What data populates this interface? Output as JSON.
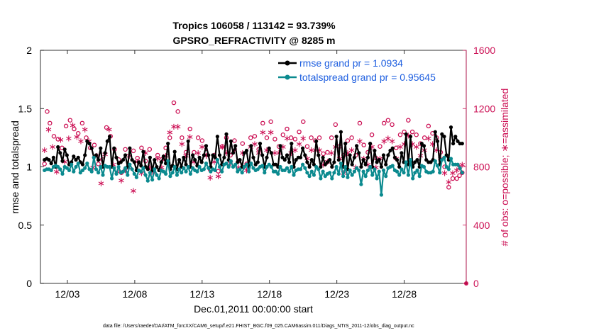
{
  "chart_data": {
    "type": "line",
    "title_line1": "Tropics 106058 / 113142 = 93.739%",
    "title_line2": "GPSRO_REFRACTIVITY @ 8285 m",
    "xlabel": "Dec.01,2011 00:00:00 start",
    "ylabel": "rmse and totalspread",
    "ylabel_right": "# of obs: o=possible; ∗=assimilated",
    "xlim": [
      1,
      32.6
    ],
    "ylim": [
      0,
      2
    ],
    "ylim_right": [
      0,
      1600
    ],
    "x_tick_values": [
      3,
      8,
      13,
      18,
      23,
      28
    ],
    "x_tick_labels": [
      "12/03",
      "12/08",
      "12/13",
      "12/18",
      "12/23",
      "12/28"
    ],
    "y_tick_labels": [
      "0",
      "0.5",
      "1",
      "1.5",
      "2"
    ],
    "y_tick_values": [
      0,
      0.5,
      1,
      1.5,
      2
    ],
    "y2_tick_labels": [
      "0",
      "400",
      "800",
      "1200",
      "1600"
    ],
    "y2_tick_values": [
      0,
      400,
      800,
      1200,
      1600
    ],
    "legend_position": "top-right",
    "series": [
      {
        "name": "rmse grand pr = 1.0934",
        "color": "#000000",
        "values": [
          1.06,
          1.07,
          1.06,
          1.03,
          1.08,
          1.0,
          1.17,
          1.12,
          1.05,
          1.15,
          1.1,
          1.02,
          1.04,
          1.09,
          1.06,
          1.08,
          1.04,
          1.02,
          1.1,
          1.22,
          1.2,
          1.16,
          1.08,
          1.1,
          1.06,
          1.16,
          1.0,
          1.12,
          1.22,
          1.26,
          1.0,
          1.16,
          1.08,
          1.03,
          1.04,
          1.06,
          1.1,
          1.0,
          1.16,
          1.06,
          1.04,
          0.97,
          1.04,
          1.01,
          1.13,
          1.0,
          0.98,
          1.08,
          0.97,
          1.06,
          1.0,
          0.97,
          1.04,
          1.09,
          1.03,
          1.2,
          0.98,
          1.01,
          1.13,
          0.98,
          1.06,
          1.0,
          1.08,
          1.02,
          1.22,
          1.0,
          1.1,
          1.06,
          1.01,
          1.08,
          1.04,
          1.1,
          1.18,
          1.1,
          1.0,
          1.1,
          1.08,
          1.26,
          1.1,
          1.02,
          1.08,
          1.28,
          1.06,
          1.22,
          1.12,
          1.18,
          1.04,
          1.06,
          1.0,
          1.12,
          1.14,
          1.0,
          1.18,
          1.08,
          1.02,
          1.04,
          1.2,
          1.1,
          1.0,
          1.08,
          1.16,
          1.12,
          1.02,
          1.02,
          1.0,
          1.18,
          1.08,
          1.06,
          1.1,
          1.04,
          1.2,
          1.0,
          1.06,
          1.08,
          1.08,
          1.16,
          1.1,
          1.04,
          1.0,
          1.06,
          1.02,
          1.22,
          1.1,
          1.0,
          1.08,
          1.02,
          1.04,
          1.06,
          1.0,
          1.04,
          1.26,
          1.06,
          1.3,
          1.0,
          1.2,
          0.98,
          1.1,
          1.02,
          1.08,
          1.18,
          1.12,
          1.0,
          1.06,
          1.02,
          1.08,
          1.2,
          1.0,
          1.14,
          1.04,
          1.06,
          1.0,
          1.1,
          1.02,
          1.1,
          1.14,
          1.16,
          1.08,
          1.06,
          1.0,
          1.12,
          1.04,
          1.28,
          1.02,
          1.26,
          1.0,
          1.04,
          1.06,
          1.0,
          1.2,
          1.18,
          1.06,
          1.04,
          1.04,
          1.06,
          1.3,
          1.22,
          1.02,
          1.28,
          1.26,
          1.1,
          1.06,
          1.34,
          1.2,
          1.26,
          1.22,
          1.2,
          1.2
        ]
      },
      {
        "name": "totalspread grand pr = 0.95645",
        "color": "#0b8a8f",
        "values": [
          0.97,
          0.98,
          0.98,
          0.97,
          1.0,
          1.01,
          1.0,
          0.98,
          0.94,
          1.0,
          0.99,
          0.97,
          1.02,
          0.96,
          1.0,
          1.03,
          0.95,
          0.97,
          0.99,
          1.03,
          0.98,
          0.96,
          1.08,
          0.98,
          0.95,
          1.0,
          0.93,
          1.01,
          1.0,
          1.0,
          0.9,
          0.99,
          0.94,
          1.0,
          0.95,
          0.96,
          0.99,
          0.93,
          1.02,
          0.98,
          0.94,
          0.91,
          0.97,
          0.96,
          0.99,
          0.93,
          0.88,
          0.95,
          0.89,
          0.98,
          0.93,
          0.9,
          0.97,
          0.96,
          0.94,
          1.05,
          0.92,
          0.95,
          1.0,
          0.93,
          0.98,
          0.95,
          0.99,
          0.96,
          1.0,
          0.94,
          0.99,
          0.97,
          0.96,
          1.0,
          0.97,
          0.98,
          1.03,
          0.99,
          0.96,
          0.98,
          0.97,
          1.06,
          1.0,
          0.96,
          1.02,
          1.03,
          1.0,
          1.05,
          1.0,
          1.02,
          0.96,
          0.98,
          0.95,
          1.0,
          1.02,
          0.96,
          1.03,
          0.99,
          0.97,
          0.98,
          1.0,
          1.01,
          0.95,
          1.0,
          1.02,
          1.0,
          0.96,
          0.96,
          0.94,
          1.0,
          0.97,
          0.97,
          0.99,
          0.96,
          1.0,
          0.93,
          0.97,
          0.98,
          0.98,
          1.02,
          0.99,
          0.95,
          0.92,
          0.96,
          0.93,
          1.0,
          0.98,
          0.9,
          0.96,
          0.92,
          0.94,
          0.95,
          0.9,
          0.95,
          1.0,
          0.94,
          1.03,
          0.92,
          1.0,
          0.91,
          0.97,
          0.93,
          0.96,
          0.99,
          0.97,
          0.85,
          0.96,
          0.92,
          0.97,
          1.0,
          0.93,
          0.98,
          0.9,
          0.96,
          0.76,
          0.97,
          0.92,
          0.99,
          1.0,
          1.01,
          0.97,
          0.96,
          0.93,
          0.98,
          0.95,
          1.04,
          0.93,
          1.06,
          0.9,
          0.95,
          0.97,
          0.92,
          1.01,
          1.0,
          0.96,
          0.95,
          0.95,
          0.96,
          1.05,
          1.01,
          0.95,
          1.06,
          1.08,
          1.0,
          0.98,
          1.07,
          1.02,
          1.02,
          1.02,
          0.99,
          0.95
        ]
      }
    ],
    "obs_possible": [
      [
        1.3,
        820
      ],
      [
        1.5,
        1180
      ],
      [
        1.7,
        1100
      ],
      [
        2.0,
        1010
      ],
      [
        2.3,
        990
      ],
      [
        2.6,
        930
      ],
      [
        2.9,
        1080
      ],
      [
        3.2,
        1120
      ],
      [
        3.5,
        1060
      ],
      [
        3.8,
        1030
      ],
      [
        4.1,
        1100
      ],
      [
        4.4,
        1000
      ],
      [
        4.7,
        930
      ],
      [
        5.0,
        950
      ],
      [
        5.3,
        820
      ],
      [
        5.6,
        850
      ],
      [
        5.9,
        1070
      ],
      [
        6.2,
        1010
      ],
      [
        6.5,
        920
      ],
      [
        6.8,
        850
      ],
      [
        7.0,
        760
      ],
      [
        7.3,
        920
      ],
      [
        7.6,
        800
      ],
      [
        7.9,
        910
      ],
      [
        8.2,
        860
      ],
      [
        8.5,
        930
      ],
      [
        8.8,
        840
      ],
      [
        9.1,
        920
      ],
      [
        9.4,
        780
      ],
      [
        9.7,
        880
      ],
      [
        10.0,
        850
      ],
      [
        10.3,
        930
      ],
      [
        10.6,
        1000
      ],
      [
        10.9,
        1240
      ],
      [
        11.2,
        1180
      ],
      [
        11.5,
        1000
      ],
      [
        11.8,
        900
      ],
      [
        12.1,
        1060
      ],
      [
        12.4,
        900
      ],
      [
        12.7,
        1000
      ],
      [
        13.0,
        980
      ],
      [
        13.3,
        900
      ],
      [
        13.6,
        780
      ],
      [
        13.9,
        880
      ],
      [
        14.2,
        770
      ],
      [
        14.5,
        940
      ],
      [
        14.8,
        1000
      ],
      [
        15.1,
        880
      ],
      [
        15.4,
        980
      ],
      [
        15.7,
        840
      ],
      [
        16.0,
        960
      ],
      [
        16.3,
        820
      ],
      [
        16.6,
        1000
      ],
      [
        16.9,
        1010
      ],
      [
        17.2,
        920
      ],
      [
        17.5,
        1100
      ],
      [
        17.8,
        1000
      ],
      [
        18.1,
        1110
      ],
      [
        18.4,
        990
      ],
      [
        18.7,
        940
      ],
      [
        19.0,
        1020
      ],
      [
        19.3,
        1060
      ],
      [
        19.6,
        1000
      ],
      [
        19.9,
        990
      ],
      [
        20.2,
        1040
      ],
      [
        20.5,
        1110
      ],
      [
        20.8,
        940
      ],
      [
        21.1,
        1000
      ],
      [
        21.4,
        980
      ],
      [
        21.7,
        1000
      ],
      [
        22.0,
        890
      ],
      [
        22.3,
        900
      ],
      [
        22.6,
        1000
      ],
      [
        22.9,
        1090
      ],
      [
        23.2,
        940
      ],
      [
        23.5,
        880
      ],
      [
        23.8,
        980
      ],
      [
        24.1,
        1000
      ],
      [
        24.4,
        880
      ],
      [
        24.7,
        1100
      ],
      [
        25.0,
        950
      ],
      [
        25.3,
        900
      ],
      [
        25.6,
        1020
      ],
      [
        25.9,
        860
      ],
      [
        26.2,
        940
      ],
      [
        26.5,
        1100
      ],
      [
        26.8,
        1120
      ],
      [
        27.1,
        1090
      ],
      [
        27.4,
        930
      ],
      [
        27.7,
        1020
      ],
      [
        28.0,
        1040
      ],
      [
        28.3,
        1120
      ],
      [
        28.6,
        1040
      ],
      [
        28.9,
        1020
      ],
      [
        29.2,
        960
      ],
      [
        29.5,
        1000
      ],
      [
        29.8,
        1080
      ],
      [
        30.1,
        1030
      ],
      [
        30.4,
        1000
      ],
      [
        30.7,
        900
      ],
      [
        31.0,
        800
      ],
      [
        31.3,
        660
      ],
      [
        31.6,
        720
      ],
      [
        31.9,
        720
      ],
      [
        32.1,
        740
      ],
      [
        32.3,
        760
      ]
    ],
    "obs_assimilated": [
      [
        1.3,
        920
      ],
      [
        1.6,
        1060
      ],
      [
        1.9,
        940
      ],
      [
        2.2,
        770
      ],
      [
        2.5,
        990
      ],
      [
        2.8,
        840
      ],
      [
        3.1,
        1000
      ],
      [
        3.4,
        1090
      ],
      [
        3.7,
        1010
      ],
      [
        4.0,
        980
      ],
      [
        4.3,
        1060
      ],
      [
        4.6,
        980
      ],
      [
        4.9,
        800
      ],
      [
        5.2,
        880
      ],
      [
        5.5,
        690
      ],
      [
        5.8,
        890
      ],
      [
        6.1,
        1060
      ],
      [
        6.4,
        820
      ],
      [
        6.7,
        770
      ],
      [
        7.0,
        710
      ],
      [
        7.3,
        780
      ],
      [
        7.6,
        880
      ],
      [
        7.9,
        640
      ],
      [
        8.2,
        840
      ],
      [
        8.5,
        760
      ],
      [
        8.8,
        900
      ],
      [
        9.1,
        800
      ],
      [
        9.4,
        760
      ],
      [
        9.7,
        860
      ],
      [
        10.0,
        800
      ],
      [
        10.3,
        880
      ],
      [
        10.6,
        1040
      ],
      [
        10.9,
        1080
      ],
      [
        11.2,
        1080
      ],
      [
        11.5,
        960
      ],
      [
        11.8,
        880
      ],
      [
        12.1,
        1010
      ],
      [
        12.4,
        840
      ],
      [
        12.7,
        900
      ],
      [
        13.0,
        940
      ],
      [
        13.3,
        880
      ],
      [
        13.6,
        730
      ],
      [
        13.9,
        840
      ],
      [
        14.2,
        740
      ],
      [
        14.5,
        940
      ],
      [
        14.8,
        900
      ],
      [
        15.1,
        830
      ],
      [
        15.4,
        920
      ],
      [
        15.7,
        800
      ],
      [
        16.0,
        900
      ],
      [
        16.3,
        780
      ],
      [
        16.6,
        940
      ],
      [
        16.9,
        960
      ],
      [
        17.2,
        900
      ],
      [
        17.5,
        1040
      ],
      [
        17.8,
        920
      ],
      [
        18.1,
        1040
      ],
      [
        18.4,
        900
      ],
      [
        18.7,
        900
      ],
      [
        19.0,
        940
      ],
      [
        19.3,
        1000
      ],
      [
        19.6,
        900
      ],
      [
        19.9,
        920
      ],
      [
        20.2,
        960
      ],
      [
        20.5,
        1000
      ],
      [
        20.8,
        860
      ],
      [
        21.1,
        920
      ],
      [
        21.4,
        920
      ],
      [
        21.7,
        920
      ],
      [
        22.0,
        820
      ],
      [
        22.3,
        840
      ],
      [
        22.6,
        900
      ],
      [
        22.9,
        940
      ],
      [
        23.2,
        860
      ],
      [
        23.5,
        760
      ],
      [
        23.8,
        900
      ],
      [
        24.1,
        920
      ],
      [
        24.4,
        800
      ],
      [
        24.7,
        980
      ],
      [
        25.0,
        860
      ],
      [
        25.3,
        820
      ],
      [
        25.6,
        940
      ],
      [
        25.9,
        800
      ],
      [
        26.2,
        860
      ],
      [
        26.5,
        980
      ],
      [
        26.8,
        1000
      ],
      [
        27.1,
        980
      ],
      [
        27.4,
        860
      ],
      [
        27.7,
        940
      ],
      [
        28.0,
        960
      ],
      [
        28.3,
        1020
      ],
      [
        28.6,
        960
      ],
      [
        28.9,
        940
      ],
      [
        29.2,
        880
      ],
      [
        29.5,
        920
      ],
      [
        29.8,
        1000
      ],
      [
        30.1,
        960
      ],
      [
        30.4,
        920
      ],
      [
        30.7,
        860
      ],
      [
        31.0,
        760
      ],
      [
        31.3,
        700
      ],
      [
        31.6,
        760
      ],
      [
        31.9,
        780
      ],
      [
        32.1,
        800
      ],
      [
        32.3,
        820
      ]
    ]
  },
  "footnote": "data file: /Users/raeder/DAI/ATM_forcXX/CAM6_setup/f.e21.FHIST_BGC.f09_025.CAM6assim.011/Diags_NTrS_2011-12/obs_diag_output.nc"
}
